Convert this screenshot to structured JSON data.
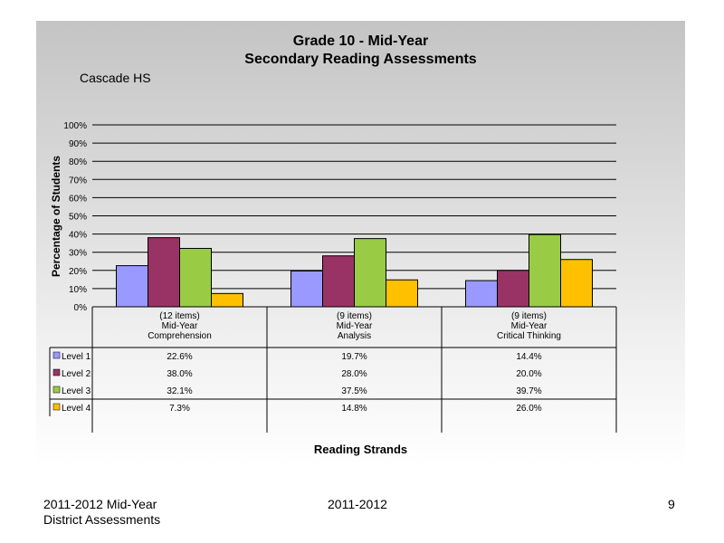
{
  "title_line1": "Grade 10 - Mid-Year",
  "title_line2": "Secondary Reading Assessments",
  "school": "Cascade HS",
  "footer": {
    "left_line1": "2011-2012  Mid-Year",
    "left_line2": "District Assessments",
    "center": "2011-2012",
    "page": "9"
  },
  "colors": {
    "level1": "#9999ff",
    "level2": "#993366",
    "level3": "#99cc44",
    "level4": "#ffc000"
  },
  "chart_data": {
    "type": "bar",
    "xlabel": "Reading Strands",
    "ylabel": "Percentage of Students",
    "ylim": [
      0,
      100
    ],
    "yticks": [
      "0%",
      "10%",
      "20%",
      "30%",
      "40%",
      "50%",
      "60%",
      "70%",
      "80%",
      "90%",
      "100%"
    ],
    "grid": true,
    "categories": [
      [
        "(12 items)",
        "Mid-Year",
        "Comprehension"
      ],
      [
        "(9 items)",
        "Mid-Year",
        "Analysis"
      ],
      [
        "(9 items)",
        "Mid-Year",
        "Critical Thinking"
      ]
    ],
    "series": [
      {
        "name": "Level 1",
        "values": [
          22.6,
          19.7,
          14.4
        ],
        "labels": [
          "22.6%",
          "19.7%",
          "14.4%"
        ]
      },
      {
        "name": "Level 2",
        "values": [
          38.0,
          28.0,
          20.0
        ],
        "labels": [
          "38.0%",
          "28.0%",
          "20.0%"
        ]
      },
      {
        "name": "Level 3",
        "values": [
          32.1,
          37.5,
          39.7
        ],
        "labels": [
          "32.1%",
          "37.5%",
          "39.7%"
        ]
      },
      {
        "name": "Level 4",
        "values": [
          7.3,
          14.8,
          26.0
        ],
        "labels": [
          "7.3%",
          "14.8%",
          "26.0%"
        ]
      }
    ]
  }
}
